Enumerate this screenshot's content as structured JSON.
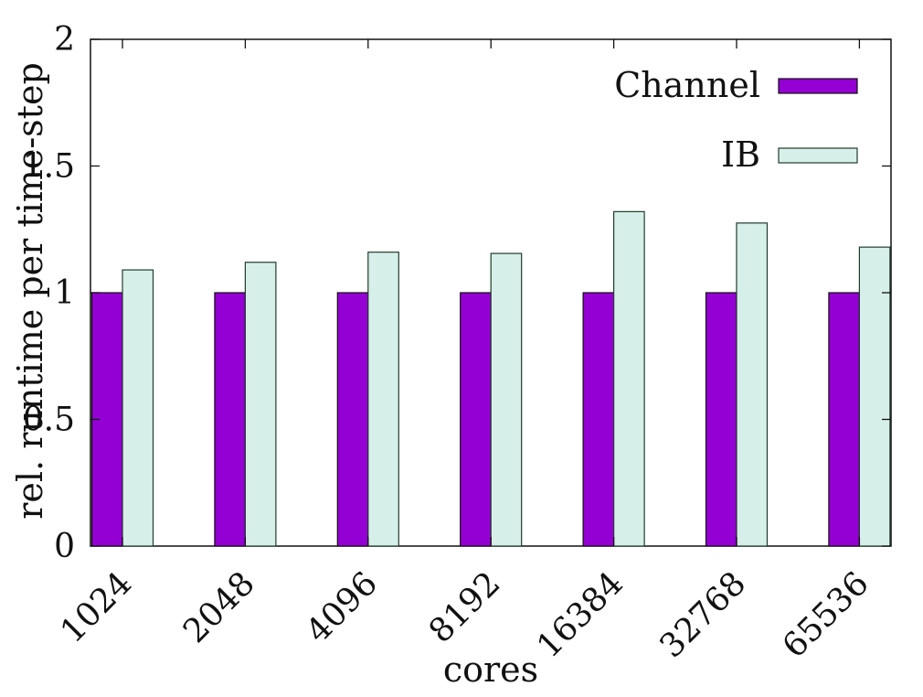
{
  "chart_data": {
    "type": "bar",
    "title": "",
    "xlabel": "cores",
    "ylabel": "rel. runtime per time-step",
    "categories": [
      "1024",
      "2048",
      "4096",
      "8192",
      "16384",
      "32768",
      "65536"
    ],
    "ylim": [
      0,
      2
    ],
    "yticks": [
      0,
      0.5,
      1,
      1.5,
      2
    ],
    "ytick_labels": [
      "0",
      "0.5",
      "1",
      "1.5",
      "2"
    ],
    "legend_position": "top-right",
    "series": [
      {
        "name": "Channel",
        "values": [
          1,
          1,
          1,
          1,
          1,
          1,
          1
        ],
        "color": "#9400d3"
      },
      {
        "name": "IB",
        "values": [
          1.09,
          1.12,
          1.16,
          1.155,
          1.32,
          1.275,
          1.18
        ],
        "color": "#d7efe9"
      }
    ]
  }
}
